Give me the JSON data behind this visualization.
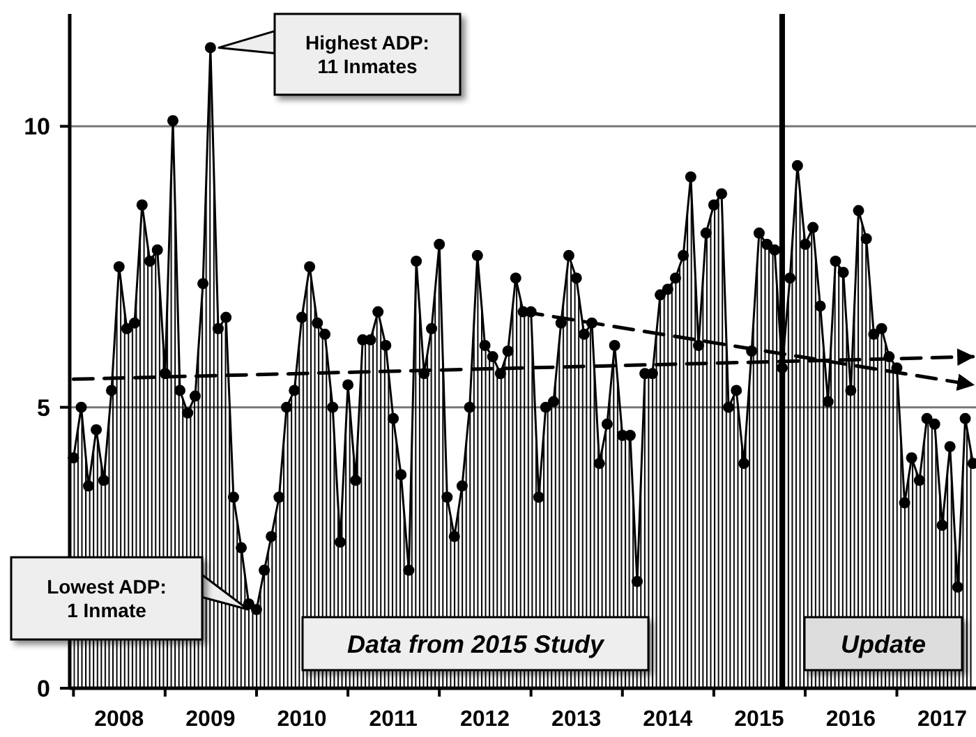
{
  "chart_data": {
    "type": "area",
    "ylim": [
      0,
      12
    ],
    "yticks": [
      0,
      5,
      10
    ],
    "grid": "y",
    "xlim": [
      "2007-12-17",
      "2017-11-13"
    ],
    "xticks": [
      {
        "value": "2008-01-01",
        "label": null
      },
      {
        "value": "2008-07-01",
        "label": "2008"
      },
      {
        "value": "2009-01-01",
        "label": null
      },
      {
        "value": "2009-07-01",
        "label": "2009"
      },
      {
        "value": "2010-01-01",
        "label": null
      },
      {
        "value": "2010-07-01",
        "label": "2010"
      },
      {
        "value": "2011-01-01",
        "label": null
      },
      {
        "value": "2011-07-01",
        "label": "2011"
      },
      {
        "value": "2012-01-01",
        "label": null
      },
      {
        "value": "2012-07-01",
        "label": "2012"
      },
      {
        "value": "2013-01-01",
        "label": null
      },
      {
        "value": "2013-07-01",
        "label": "2013"
      },
      {
        "value": "2014-01-01",
        "label": null
      },
      {
        "value": "2014-07-01",
        "label": "2014"
      },
      {
        "value": "2015-01-01",
        "label": null
      },
      {
        "value": "2015-07-01",
        "label": "2015"
      },
      {
        "value": "2016-01-01",
        "label": null
      },
      {
        "value": "2016-07-01",
        "label": "2016"
      },
      {
        "value": "2017-01-01",
        "label": null
      },
      {
        "value": "2017-07-01",
        "label": "2017"
      }
    ],
    "x": [
      "2008-01",
      "2008-02",
      "2008-03",
      "2008-04",
      "2008-05",
      "2008-06",
      "2008-07",
      "2008-08",
      "2008-09",
      "2008-10",
      "2008-11",
      "2008-12",
      "2009-01",
      "2009-02",
      "2009-03",
      "2009-04",
      "2009-05",
      "2009-06",
      "2009-07",
      "2009-08",
      "2009-09",
      "2009-10",
      "2009-11",
      "2009-12",
      "2010-01",
      "2010-02",
      "2010-03",
      "2010-04",
      "2010-05",
      "2010-06",
      "2010-07",
      "2010-08",
      "2010-09",
      "2010-10",
      "2010-11",
      "2010-12",
      "2011-01",
      "2011-02",
      "2011-03",
      "2011-04",
      "2011-05",
      "2011-06",
      "2011-07",
      "2011-08",
      "2011-09",
      "2011-10",
      "2011-11",
      "2011-12",
      "2012-01",
      "2012-02",
      "2012-03",
      "2012-04",
      "2012-05",
      "2012-06",
      "2012-07",
      "2012-08",
      "2012-09",
      "2012-10",
      "2012-11",
      "2012-12",
      "2013-01",
      "2013-02",
      "2013-03",
      "2013-04",
      "2013-05",
      "2013-06",
      "2013-07",
      "2013-08",
      "2013-09",
      "2013-10",
      "2013-11",
      "2013-12",
      "2014-01",
      "2014-02",
      "2014-03",
      "2014-04",
      "2014-05",
      "2014-06",
      "2014-07",
      "2014-08",
      "2014-09",
      "2014-10",
      "2014-11",
      "2014-12",
      "2015-01",
      "2015-02",
      "2015-03",
      "2015-04",
      "2015-05",
      "2015-06",
      "2015-07",
      "2015-08",
      "2015-09",
      "2015-10",
      "2015-11",
      "2015-12",
      "2016-01",
      "2016-02",
      "2016-03",
      "2016-04",
      "2016-05",
      "2016-06",
      "2016-07",
      "2016-08",
      "2016-09",
      "2016-10",
      "2016-11",
      "2016-12",
      "2017-01",
      "2017-02",
      "2017-03",
      "2017-04",
      "2017-05",
      "2017-06",
      "2017-07",
      "2017-08",
      "2017-09",
      "2017-10",
      "2017-11"
    ],
    "series": [
      {
        "color": "#000000",
        "marker": "circle",
        "values": [
          4.1,
          5.0,
          3.6,
          4.6,
          3.7,
          5.3,
          7.5,
          6.4,
          6.5,
          8.6,
          7.6,
          7.8,
          5.6,
          10.1,
          5.3,
          4.9,
          5.2,
          7.2,
          11.4,
          6.4,
          6.6,
          3.4,
          2.5,
          1.5,
          1.4,
          2.1,
          2.7,
          3.4,
          5.0,
          5.3,
          6.6,
          7.5,
          6.5,
          6.3,
          5.0,
          2.6,
          5.4,
          3.7,
          6.2,
          6.2,
          6.7,
          6.1,
          4.8,
          3.8,
          2.1,
          7.6,
          5.6,
          6.4,
          7.9,
          3.4,
          2.7,
          3.6,
          5.0,
          7.7,
          6.1,
          5.9,
          5.6,
          6.0,
          7.3,
          6.7,
          6.7,
          3.4,
          5.0,
          5.1,
          6.5,
          7.7,
          7.3,
          6.3,
          6.5,
          4.0,
          4.7,
          6.1,
          4.5,
          4.5,
          1.9,
          5.6,
          5.6,
          7.0,
          7.1,
          7.3,
          7.7,
          9.1,
          6.1,
          8.1,
          8.6,
          8.8,
          5.0,
          5.3,
          4.0,
          6.0,
          8.1,
          7.9,
          7.8,
          5.7,
          7.3,
          9.3,
          7.9,
          8.2,
          6.8,
          5.1,
          7.6,
          7.4,
          5.3,
          8.5,
          8.0,
          6.3,
          6.4,
          5.9,
          5.7,
          3.3,
          4.1,
          3.7,
          4.8,
          4.7,
          2.9,
          4.3,
          1.8,
          4.8,
          4.0
        ]
      },
      {
        "type": "line",
        "color": "#000000",
        "marker": "none",
        "line_style": "dashed",
        "x": [
          "2008-01",
          "2017-11"
        ],
        "values": [
          5.5,
          5.9
        ]
      },
      {
        "type": "line",
        "color": "#000000",
        "marker": "none",
        "line_style": "dashed",
        "x": [
          "2012-12",
          "2017-11"
        ],
        "values": [
          6.7,
          5.4
        ]
      }
    ],
    "ref_lines": [
      {
        "axis": "x",
        "value": "2015-10-01",
        "color": "#000000"
      }
    ],
    "annotations": [
      "Highest ADP:\n11 Inmates",
      "Lowest ADP:\n1 Inmate",
      "Data from 2015 Study",
      "Update"
    ]
  }
}
